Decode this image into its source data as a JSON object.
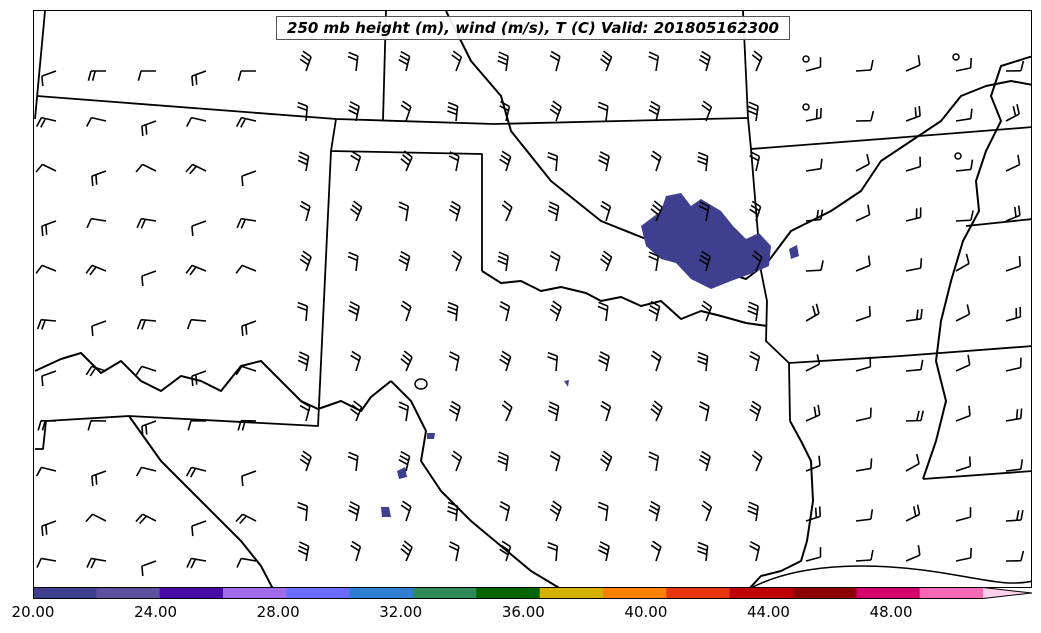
{
  "title": "250 mb height (m), wind (m/s), T (C) Valid: 201805162300",
  "colorbar": {
    "colors": [
      "#3f3f8f",
      "#5c509f",
      "#4a0aa8",
      "#a06ae8",
      "#6b6bff",
      "#2f7fd1",
      "#2e8b57",
      "#006400",
      "#d4b000",
      "#ff7f00",
      "#e8360a",
      "#c00000",
      "#8b0000",
      "#d4006b",
      "#f569b4"
    ],
    "extend_color": "#fbd0e8",
    "ticks": [
      "20.00",
      "24.00",
      "28.00",
      "32.00",
      "36.00",
      "40.00",
      "44.00",
      "48.00"
    ],
    "range": [
      20,
      51
    ]
  },
  "temperature_fill_color": "#3f3f8f",
  "wind_barb_color": "#000000",
  "border_color": "#000000"
}
